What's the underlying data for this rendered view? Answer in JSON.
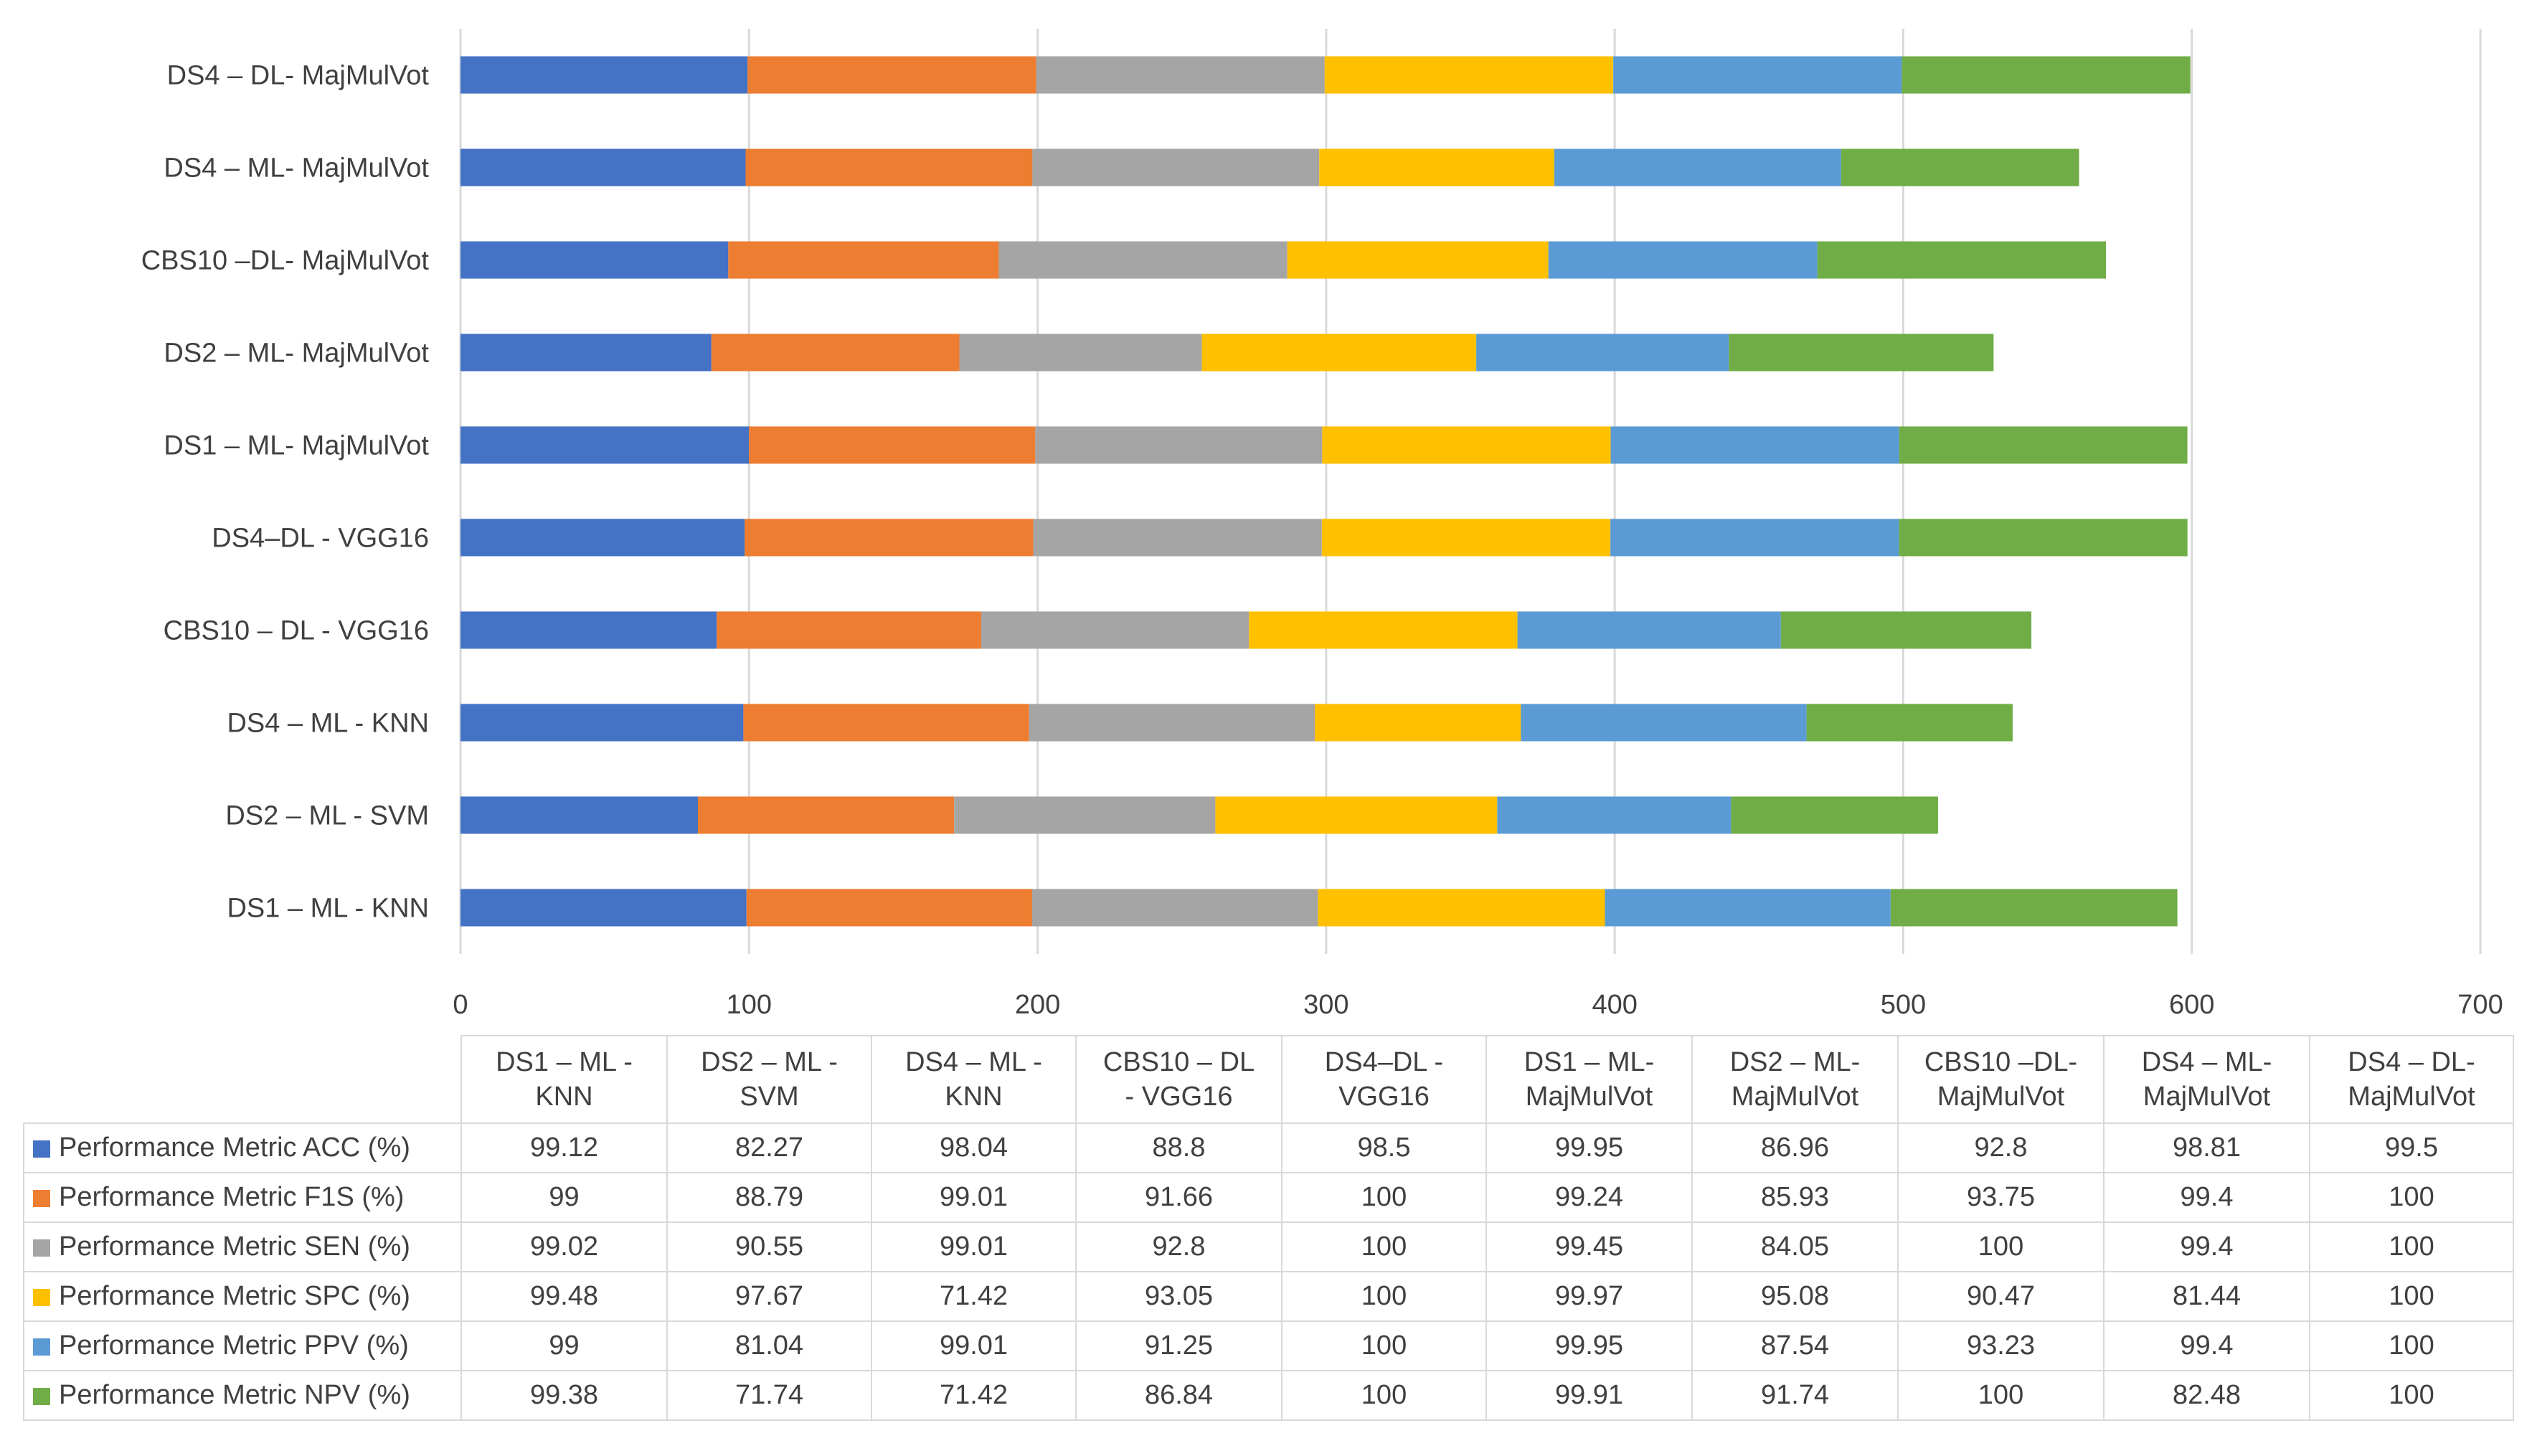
{
  "chart_data": {
    "type": "bar",
    "orientation": "horizontal",
    "stacked": true,
    "title": "",
    "xlabel": "",
    "ylabel": "",
    "xlim": [
      0,
      700
    ],
    "x_ticks": [
      0,
      100,
      200,
      300,
      400,
      500,
      600,
      700
    ],
    "grid": true,
    "legend": "table-below",
    "categories": [
      "DS1 – ML - KNN",
      "DS2 – ML - SVM",
      "DS4 – ML - KNN",
      "CBS10 – DL - VGG16",
      "DS4–DL - VGG16",
      "DS1 – ML- MajMulVot",
      "DS2 – ML- MajMulVot",
      "CBS10 –DL- MajMulVot",
      "DS4 – ML- MajMulVot",
      "DS4 – DL- MajMulVot"
    ],
    "table_headers": [
      [
        "DS1 – ML -",
        "KNN"
      ],
      [
        "DS2 – ML -",
        "SVM"
      ],
      [
        "DS4 – ML -",
        "KNN"
      ],
      [
        "CBS10 – DL",
        "- VGG16"
      ],
      [
        "DS4–DL -",
        "VGG16"
      ],
      [
        "DS1 – ML-",
        "MajMulVot"
      ],
      [
        "DS2 – ML-",
        "MajMulVot"
      ],
      [
        "CBS10 –DL-",
        "MajMulVot"
      ],
      [
        "DS4 – ML-",
        "MajMulVot"
      ],
      [
        "DS4 – DL-",
        "MajMulVot"
      ]
    ],
    "series": [
      {
        "name": "Performance Metric ACC (%)",
        "color": "#4472c4",
        "values": [
          99.12,
          82.27,
          98.04,
          88.8,
          98.5,
          99.95,
          86.96,
          92.8,
          98.81,
          99.5
        ]
      },
      {
        "name": "Performance Metric F1S (%)",
        "color": "#ed7d31",
        "values": [
          99,
          88.79,
          99.01,
          91.66,
          100,
          99.24,
          85.93,
          93.75,
          99.4,
          100
        ]
      },
      {
        "name": "Performance Metric SEN (%)",
        "color": "#a5a5a5",
        "values": [
          99.02,
          90.55,
          99.01,
          92.8,
          100,
          99.45,
          84.05,
          100,
          99.4,
          100
        ]
      },
      {
        "name": "Performance Metric SPC (%)",
        "color": "#ffc000",
        "values": [
          99.48,
          97.67,
          71.42,
          93.05,
          100,
          99.97,
          95.08,
          90.47,
          81.44,
          100
        ]
      },
      {
        "name": "Performance Metric PPV (%)",
        "color": "#5b9bd5",
        "values": [
          99,
          81.04,
          99.01,
          91.25,
          100,
          99.95,
          87.54,
          93.23,
          99.4,
          100
        ]
      },
      {
        "name": "Performance Metric NPV (%)",
        "color": "#70ad47",
        "values": [
          99.38,
          71.74,
          71.42,
          86.84,
          100,
          99.91,
          91.74,
          100,
          82.48,
          100
        ]
      }
    ]
  }
}
